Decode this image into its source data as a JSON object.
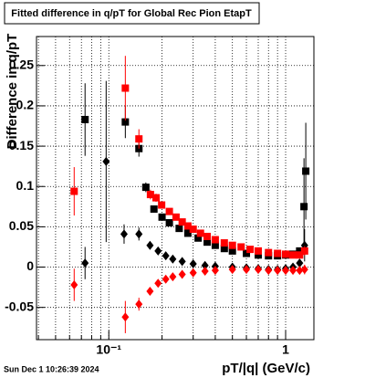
{
  "chart_data": {
    "type": "scatter",
    "title": "Fitted difference in q/pT for Global Rec Pion EtapT",
    "y_label": "Difference in q/pT",
    "x_label": "pT/|q| (GeV/c)",
    "footer": "Sun Dec  1 10:26:39 2024",
    "x_log": true,
    "grid": true,
    "xlim": [
      0.039,
      1.445
    ],
    "ylim": [
      -0.09,
      0.286
    ],
    "xticks": [
      {
        "value": 0.1,
        "label": "10⁻¹"
      },
      1
    ],
    "x_minor_ticks": [
      0.04,
      0.05,
      0.06,
      0.07,
      0.08,
      0.09,
      0.2,
      0.3,
      0.4,
      0.5,
      0.6,
      0.7,
      0.8,
      0.9
    ],
    "yticks": [
      -0.05,
      0,
      0.05,
      0.1,
      0.15,
      0.2,
      0.25
    ],
    "series": [
      {
        "color": "#000000",
        "marker": "square",
        "x": [
          0.0734,
          0.124,
          0.148,
          0.162,
          0.18,
          0.2,
          0.22,
          0.25,
          0.28,
          0.32,
          0.36,
          0.4,
          0.45,
          0.5,
          0.6,
          0.7,
          0.8,
          0.9,
          1.0,
          1.1,
          1.2,
          1.27,
          1.3
        ],
        "values": [
          0.183,
          0.18,
          0.147,
          0.099,
          0.072,
          0.062,
          0.055,
          0.048,
          0.042,
          0.036,
          0.031,
          0.027,
          0.023,
          0.02,
          0.017,
          0.015,
          0.014,
          0.014,
          0.015,
          0.016,
          0.02,
          0.075,
          0.119
        ],
        "errors": [
          0.045,
          0.02,
          0.01,
          0.006,
          0.004,
          0.003,
          0.003,
          0.003,
          0.003,
          0.003,
          0.003,
          0.003,
          0.003,
          0.003,
          0.003,
          0.003,
          0.003,
          0.003,
          0.003,
          0.003,
          0.004,
          0.06,
          0.06
        ]
      },
      {
        "color": "#000000",
        "marker": "diamond",
        "x": [
          0.0734,
          0.0966,
          0.122,
          0.148,
          0.171,
          0.19,
          0.21,
          0.23,
          0.26,
          0.3,
          0.35,
          0.4,
          0.5,
          0.6,
          0.7,
          0.8,
          0.9,
          1.0,
          1.1,
          1.2,
          1.28
        ],
        "values": [
          0.005,
          0.131,
          0.041,
          0.041,
          0.027,
          0.02,
          0.014,
          0.01,
          0.007,
          0.004,
          0.002,
          0.001,
          0.0,
          -0.001,
          -0.002,
          -0.003,
          -0.003,
          -0.002,
          0.0,
          0.005,
          0.027
        ],
        "errors": [
          0.02,
          0.1,
          0.012,
          0.008,
          0.005,
          0.004,
          0.003,
          0.003,
          0.003,
          0.003,
          0.003,
          0.003,
          0.003,
          0.003,
          0.003,
          0.003,
          0.003,
          0.003,
          0.003,
          0.004,
          0.02
        ]
      },
      {
        "color": "#ff0000",
        "marker": "square",
        "x": [
          0.0637,
          0.124,
          0.148,
          0.172,
          0.185,
          0.199,
          0.22,
          0.24,
          0.26,
          0.28,
          0.3,
          0.33,
          0.36,
          0.4,
          0.45,
          0.5,
          0.56,
          0.63,
          0.7,
          0.8,
          0.9,
          1.0,
          1.1,
          1.2,
          1.28
        ],
        "values": [
          0.094,
          0.222,
          0.159,
          0.09,
          0.086,
          0.077,
          0.069,
          0.062,
          0.056,
          0.051,
          0.047,
          0.042,
          0.038,
          0.034,
          0.03,
          0.027,
          0.025,
          0.022,
          0.02,
          0.018,
          0.017,
          0.016,
          0.015,
          0.015,
          0.02
        ],
        "errors": [
          0.03,
          0.04,
          0.012,
          0.006,
          0.005,
          0.004,
          0.003,
          0.003,
          0.003,
          0.003,
          0.003,
          0.003,
          0.003,
          0.003,
          0.003,
          0.003,
          0.003,
          0.003,
          0.003,
          0.003,
          0.003,
          0.003,
          0.003,
          0.004,
          0.006
        ]
      },
      {
        "color": "#ff0000",
        "marker": "diamond",
        "x": [
          0.0637,
          0.124,
          0.148,
          0.171,
          0.19,
          0.21,
          0.23,
          0.26,
          0.3,
          0.35,
          0.4,
          0.5,
          0.6,
          0.7,
          0.8,
          0.9,
          1.0,
          1.1,
          1.2,
          1.28
        ],
        "values": [
          -0.022,
          -0.062,
          -0.046,
          -0.03,
          -0.02,
          -0.015,
          -0.012,
          -0.009,
          -0.007,
          -0.005,
          -0.004,
          -0.003,
          -0.003,
          -0.003,
          -0.004,
          -0.004,
          -0.004,
          -0.004,
          -0.004,
          -0.003
        ],
        "errors": [
          0.02,
          0.02,
          0.008,
          0.005,
          0.004,
          0.003,
          0.003,
          0.003,
          0.003,
          0.003,
          0.003,
          0.003,
          0.003,
          0.003,
          0.003,
          0.003,
          0.003,
          0.003,
          0.004,
          0.006
        ]
      }
    ]
  }
}
